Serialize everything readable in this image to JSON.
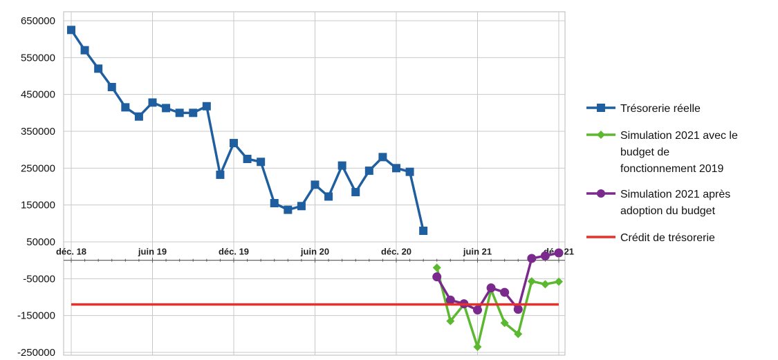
{
  "chart_data": {
    "type": "line",
    "title": "",
    "xlabel": "",
    "ylabel": "",
    "ylim": [
      -250000,
      650000
    ],
    "y_ticks": [
      650000,
      550000,
      450000,
      350000,
      250000,
      150000,
      50000,
      -50000,
      -150000,
      -250000
    ],
    "y_tick_labels": [
      "650000",
      "550000",
      "450000",
      "350000",
      "250000",
      "150000",
      "50000",
      "-50000",
      "-150000",
      "-250000"
    ],
    "x_tick_labels": [
      "déc. 18",
      "juin 19",
      "déc. 19",
      "juin 20",
      "déc. 20",
      "juin 21",
      "déc. 21"
    ],
    "x_tick_months": [
      0,
      6,
      12,
      18,
      24,
      30,
      36
    ],
    "x_range_months": [
      0,
      37
    ],
    "grid": true,
    "legend_position": "right",
    "series": [
      {
        "name": "Trésorerie réelle",
        "color": "#1f5fa0",
        "marker": "square",
        "months": [
          0,
          1,
          2,
          3,
          4,
          5,
          6,
          7,
          8,
          9,
          10,
          11,
          12,
          13,
          14,
          15,
          16,
          17,
          18,
          19,
          20,
          21,
          22,
          23,
          24,
          25,
          26
        ],
        "values": [
          625000,
          570000,
          520000,
          470000,
          415000,
          390000,
          428000,
          413000,
          400000,
          400000,
          418000,
          232000,
          318000,
          275000,
          267000,
          155000,
          137000,
          147000,
          205000,
          173000,
          257000,
          185000,
          243000,
          280000,
          250000,
          240000,
          80000
        ]
      },
      {
        "name": "Simulation 2021 avec le budget de fonctionnement 2019",
        "name_lines": [
          "Simulation 2021 avec le",
          "budget de",
          "fonctionnement 2019"
        ],
        "color": "#5cb82f",
        "marker": "diamond",
        "months": [
          27,
          28,
          29,
          30,
          31,
          32,
          33,
          34,
          35,
          36
        ],
        "values": [
          -20000,
          -165000,
          -120000,
          -235000,
          -80000,
          -170000,
          -200000,
          -57000,
          -65000,
          -58000
        ]
      },
      {
        "name": "Simulation 2021 après adoption du budget",
        "name_lines": [
          "Simulation 2021 après",
          "adoption du budget"
        ],
        "color": "#7a2a8c",
        "marker": "circle",
        "months": [
          27,
          28,
          29,
          30,
          31,
          32,
          33,
          34,
          35,
          36
        ],
        "values": [
          -45000,
          -108000,
          -118000,
          -135000,
          -75000,
          -87000,
          -133000,
          5000,
          12000,
          20000
        ]
      },
      {
        "name": "Crédit de trésorerie",
        "color": "#e8302a",
        "marker": "none",
        "months": [
          0,
          36
        ],
        "values": [
          -120000,
          -120000
        ]
      }
    ]
  }
}
